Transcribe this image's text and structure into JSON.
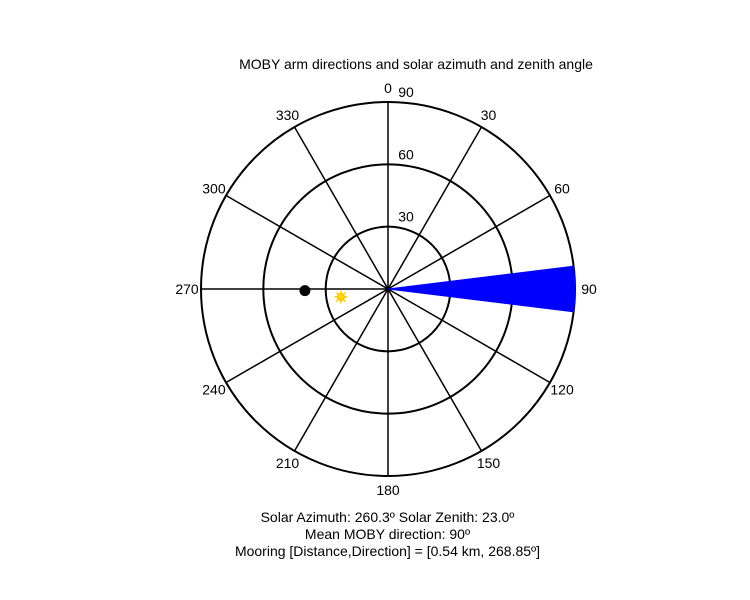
{
  "chart_data": {
    "type": "polar",
    "title": "MOBY arm directions and solar azimuth and zenith angle",
    "angle_ticks": [
      {
        "deg": 0,
        "label": "0"
      },
      {
        "deg": 30,
        "label": "30"
      },
      {
        "deg": 60,
        "label": "60"
      },
      {
        "deg": 90,
        "label": "90"
      },
      {
        "deg": 120,
        "label": "120"
      },
      {
        "deg": 150,
        "label": "150"
      },
      {
        "deg": 180,
        "label": "180"
      },
      {
        "deg": 210,
        "label": "210"
      },
      {
        "deg": 240,
        "label": "240"
      },
      {
        "deg": 270,
        "label": "270"
      },
      {
        "deg": 300,
        "label": "300"
      },
      {
        "deg": 330,
        "label": "330"
      }
    ],
    "radial_ticks": [
      {
        "value": 30,
        "label": "30"
      },
      {
        "value": 60,
        "label": "60"
      },
      {
        "value": 90,
        "label": "90"
      }
    ],
    "radial_max": 90,
    "moby_arm": {
      "direction_deg": 90,
      "width_deg": 14,
      "color": "#0000ff"
    },
    "mooring": {
      "direction_deg": 268.85,
      "radial_value": 40,
      "color": "#000000"
    },
    "sun": {
      "azimuth_deg": 260.3,
      "zenith_deg": 23.0,
      "color": "#ffd700"
    },
    "caption": {
      "line1": "Solar Azimuth: 260.3º   Solar Zenith: 23.0º",
      "line2": "Mean MOBY direction: 90º",
      "line3": "Mooring [Distance,Direction] = [0.54 km, 268.85º]"
    }
  }
}
